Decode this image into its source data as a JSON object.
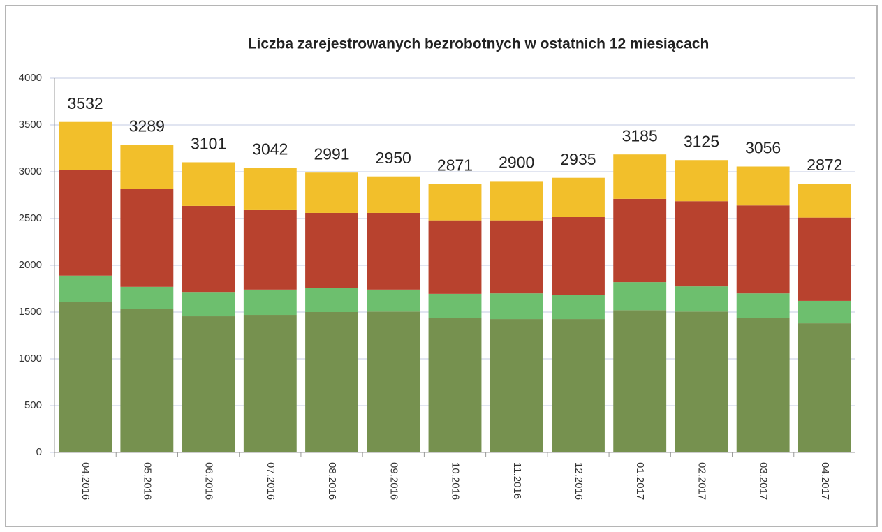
{
  "chart_data": {
    "type": "stacked_bar",
    "title": "Liczba zarejestrowanych bezrobotnych w ostatnich 12 miesiącach",
    "categories": [
      "04.2016",
      "05.2016",
      "06.2016",
      "07.2016",
      "08.2016",
      "09.2016",
      "10.2016",
      "11.2016",
      "12.2016",
      "01.2017",
      "02.2017",
      "03.2017",
      "04.2017"
    ],
    "series": [
      {
        "color": "#76914f",
        "values": [
          1610,
          1530,
          1455,
          1470,
          1500,
          1505,
          1440,
          1425,
          1425,
          1520,
          1505,
          1440,
          1380
        ]
      },
      {
        "color": "#6dbf6e",
        "values": [
          280,
          240,
          260,
          270,
          260,
          235,
          255,
          275,
          260,
          300,
          270,
          260,
          240
        ]
      },
      {
        "color": "#b8422e",
        "values": [
          1130,
          1050,
          920,
          850,
          800,
          820,
          785,
          780,
          830,
          890,
          910,
          940,
          890
        ]
      },
      {
        "color": "#f2bf2b",
        "values": [
          512,
          469,
          466,
          452,
          431,
          390,
          391,
          420,
          420,
          475,
          440,
          416,
          362
        ]
      }
    ],
    "totals": [
      3532,
      3289,
      3101,
      3042,
      2991,
      2950,
      2871,
      2900,
      2935,
      3185,
      3125,
      3056,
      2872
    ],
    "ylim": [
      0,
      4000
    ],
    "yticks": [
      0,
      500,
      1000,
      1500,
      2000,
      2500,
      3000,
      3500,
      4000
    ],
    "grid": true
  }
}
